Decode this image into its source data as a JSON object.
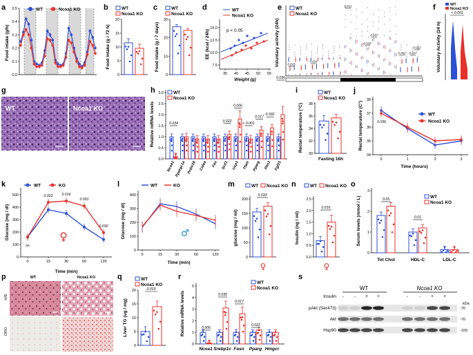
{
  "colors": {
    "wt": "#2b4fd8",
    "ko": "#e8312a"
  },
  "legend": {
    "wt": "WT",
    "ko": "Ncoa1 KO",
    "ko_short": "KO"
  },
  "a": {
    "label": "a",
    "ylabel": "Food intake (g/h)",
    "yticks": [
      "0.0",
      "0.1",
      "0.2",
      "0.3",
      "0.4",
      "0.5"
    ],
    "wt": [
      0.25,
      0.32,
      0.42,
      0.38,
      0.26,
      0.1,
      0.08,
      0.07,
      0.09,
      0.18,
      0.33,
      0.3,
      0.26,
      0.11,
      0.08,
      0.07,
      0.08,
      0.16,
      0.35,
      0.3,
      0.2,
      0.12,
      0.08,
      0.06,
      0.09,
      0.17,
      0.33,
      0.28,
      0.2
    ],
    "ko": [
      0.22,
      0.3,
      0.34,
      0.3,
      0.2,
      0.08,
      0.06,
      0.06,
      0.07,
      0.14,
      0.27,
      0.26,
      0.22,
      0.09,
      0.06,
      0.06,
      0.07,
      0.13,
      0.26,
      0.24,
      0.17,
      0.1,
      0.06,
      0.05,
      0.07,
      0.15,
      0.25,
      0.22,
      0.16
    ]
  },
  "b": {
    "label": "b",
    "ylabel": "Food intake (g / 72 h)",
    "yticks": [
      "0",
      "5",
      "10",
      "15",
      "20"
    ],
    "values": {
      "wt": 11.5,
      "ko": 9.5
    }
  },
  "c": {
    "label": "c",
    "ylabel": "Food intake (g / 7 days)",
    "yticks": [
      "0",
      "10",
      "20",
      "30"
    ],
    "values": {
      "wt": 26,
      "ko": 24
    }
  },
  "d": {
    "label": "d",
    "ylabel": "EE (kcal / 24h)",
    "xlabel": "Weight (g)",
    "xticks": [
      "35",
      "40",
      "45",
      "50",
      "55"
    ],
    "yticks": [
      "7.5",
      "10.0",
      "12.5",
      "15.0"
    ],
    "p": "p < 0.05"
  },
  "e": {
    "label": "e",
    "ylabel": "Voluntary activity (24h)",
    "pvals": [
      "0.015",
      "0.014",
      "0.011",
      "0.026",
      "0.037",
      "0.002",
      "0.037",
      "0.022"
    ]
  },
  "f": {
    "label": "f",
    "ylabel": "Voluntary Activity (24 h)",
    "pval": "< 0.001"
  },
  "g": {
    "label": "g",
    "wt": "WT",
    "ko": "Ncoa1 KO"
  },
  "h": {
    "label": "h",
    "ylabel": "Relative mRNA levels",
    "yticks": [
      "0.0",
      "0.5",
      "1.0",
      "1.5",
      "2.0",
      "2.5",
      "3.0"
    ],
    "genes": [
      "Ncoa1",
      "Ppargc1a",
      "Prdm16",
      "Cidea",
      "Fas",
      "Scd1",
      "Ucp1",
      "Tfam",
      "Pparg",
      "Plin1",
      "Fgf21"
    ],
    "wt": [
      1,
      1,
      1,
      1,
      1,
      1,
      1,
      1,
      1,
      1,
      1
    ],
    "ko": [
      0.1,
      1.0,
      0.9,
      0.9,
      0.9,
      1.1,
      1.8,
      0.9,
      1.3,
      1.4,
      2.0
    ],
    "pvals": [
      {
        "gene": "Ncoa1",
        "p": "0.034"
      },
      {
        "gene": "Scd1",
        "p": "0.022"
      },
      {
        "gene": "Ucp1",
        "p": "0.006"
      },
      {
        "gene": "Tfam",
        "p": "< 0.001"
      },
      {
        "gene": "Pparg",
        "p": "0.017"
      },
      {
        "gene": "Plin1",
        "p": "0.032"
      },
      {
        "gene": "Fgf21",
        "p": "0.036"
      }
    ]
  },
  "i": {
    "label": "i",
    "ylabel": "Rectal temperature (°C)",
    "xlabel": "Fasting 16h",
    "yticks": [
      "30",
      "32",
      "34",
      "36",
      "38"
    ],
    "values": {
      "wt": 35.2,
      "ko": 35.7
    }
  },
  "j": {
    "label": "j",
    "ylabel": "Rectal temperature (C°)",
    "xlabel": "Time (hours)",
    "xticks": [
      "0",
      "1",
      "2",
      "3"
    ],
    "yticks": [
      "34",
      "35",
      "36",
      "37",
      "38"
    ],
    "wt": [
      37.2,
      35.9,
      34.7,
      35.0
    ],
    "ko": [
      37.0,
      36.0,
      35.0,
      35.1
    ],
    "pval": "0.036"
  },
  "k": {
    "label": "k",
    "ylabel": "Glucose (mg / dl)",
    "xlabel": "Time (min)",
    "xticks": [
      "0",
      "15",
      "30",
      "60",
      "120"
    ],
    "yticks": [
      "0",
      "100",
      "200",
      "300",
      "400",
      "500"
    ],
    "wt": [
      160,
      380,
      350,
      240,
      140
    ],
    "ko": [
      160,
      440,
      450,
      410,
      195
    ],
    "pvals": [
      "ns",
      "0.022",
      "0.016",
      "0.001",
      "0.030"
    ],
    "sex": "♀"
  },
  "l": {
    "label": "l",
    "ylabel": "Glucose (mg / dl)",
    "xlabel": "Time (min)",
    "xticks": [
      "0",
      "15",
      "30",
      "60",
      "120"
    ],
    "yticks": [
      "0",
      "100",
      "200",
      "300",
      "400"
    ],
    "wt": [
      165,
      335,
      315,
      260,
      190
    ],
    "ko": [
      170,
      325,
      280,
      250,
      215
    ],
    "sex": "♂"
  },
  "m": {
    "label": "m",
    "ylabel": "glucose (mg / ml)",
    "yticks": [
      "0",
      "50",
      "100",
      "150",
      "200"
    ],
    "values": {
      "wt": 155,
      "ko": 175
    },
    "pval": "0.033",
    "sex": "♀"
  },
  "n": {
    "label": "n",
    "ylabel": "Insulin (ng / ml)",
    "yticks": [
      "0.0",
      "0.5",
      "1.0",
      "1.5",
      "2.0",
      "2.5"
    ],
    "values": {
      "wt": 0.7,
      "ko": 1.5
    },
    "pval": "0.016",
    "sex": "♀"
  },
  "o": {
    "label": "o",
    "ylabel": "Serum levels (mmol / L)",
    "yticks": [
      "0",
      "1",
      "2",
      "3"
    ],
    "groups": [
      "Tot Chol",
      "HDL-C",
      "LDL-C"
    ],
    "wt": [
      1.8,
      1.0,
      0.15
    ],
    "ko": [
      2.25,
      1.2,
      0.15
    ],
    "pvals": [
      "0.05",
      "0.01"
    ]
  },
  "p": {
    "label": "p",
    "wt": "WT",
    "ko": "Ncoa1 KO",
    "row1": "H/E",
    "row2": "ORO"
  },
  "q": {
    "label": "q",
    "ylabel": "Liver TG (ug / mg)",
    "yticks": [
      "0",
      "5",
      "10",
      "15",
      "20"
    ],
    "values": {
      "wt": 5,
      "ko": 14
    },
    "pval": "0.010"
  },
  "r": {
    "label": "r",
    "ylabel": "Relative mRNA levels",
    "yticks": [
      "0",
      "1",
      "2",
      "3",
      "4",
      "5"
    ],
    "genes": [
      "Ncoa1",
      "Srebp1c",
      "Fasn",
      "Pparg",
      "Hmgcr"
    ],
    "wt": [
      1,
      1,
      1,
      1,
      1
    ],
    "ko": [
      0.05,
      3.1,
      2.6,
      1.2,
      1.0
    ],
    "pvals": [
      "0.006",
      "0.036",
      "0.017",
      "0.022"
    ]
  },
  "s": {
    "label": "s",
    "wt": "WT",
    "ko": "Ncoa1 KO",
    "insulin": "Insulin",
    "signs": [
      "-",
      "-",
      "+",
      "+",
      "-",
      "-",
      "+",
      "+"
    ],
    "rows": [
      "pAkt (Ser473)",
      "Akt",
      "Hsp90"
    ],
    "kda": "kDa",
    "sizes": [
      "-70",
      "-70",
      "-100"
    ]
  }
}
